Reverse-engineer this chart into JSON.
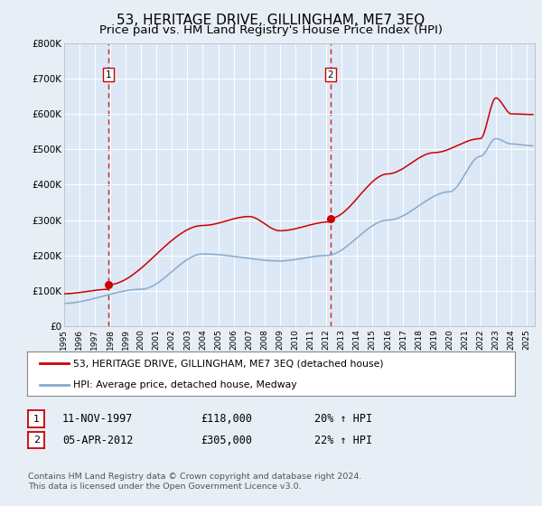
{
  "title": "53, HERITAGE DRIVE, GILLINGHAM, ME7 3EQ",
  "subtitle": "Price paid vs. HM Land Registry's House Price Index (HPI)",
  "title_fontsize": 11,
  "subtitle_fontsize": 9.5,
  "background_color": "#e8eef5",
  "plot_bg_color": "#dce8f5",
  "ylim": [
    0,
    800000
  ],
  "yticks": [
    0,
    100000,
    200000,
    300000,
    400000,
    500000,
    600000,
    700000,
    800000
  ],
  "ytick_labels": [
    "£0",
    "£100K",
    "£200K",
    "£300K",
    "£400K",
    "£500K",
    "£600K",
    "£700K",
    "£800K"
  ],
  "xlim_start": 1995.0,
  "xlim_end": 2025.5,
  "sale1_year": 1997.87,
  "sale1_price": 118000,
  "sale2_year": 2012.27,
  "sale2_price": 305000,
  "legend_line1": "53, HERITAGE DRIVE, GILLINGHAM, ME7 3EQ (detached house)",
  "legend_line2": "HPI: Average price, detached house, Medway",
  "footer_line1": "Contains HM Land Registry data © Crown copyright and database right 2024.",
  "footer_line2": "This data is licensed under the Open Government Licence v3.0.",
  "table_row1": [
    "1",
    "11-NOV-1997",
    "£118,000",
    "20% ↑ HPI"
  ],
  "table_row2": [
    "2",
    "05-APR-2012",
    "£305,000",
    "22% ↑ HPI"
  ],
  "red_line_color": "#cc0000",
  "blue_line_color": "#88aacc",
  "dashed_line_color": "#cc0000"
}
